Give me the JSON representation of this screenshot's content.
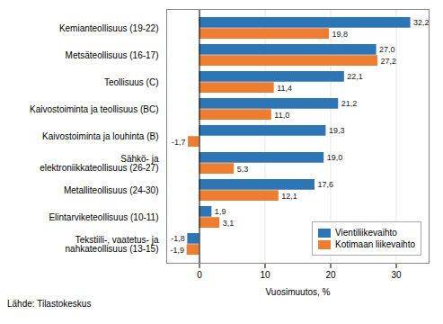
{
  "chart_data": {
    "type": "bar",
    "orientation": "horizontal",
    "categories": [
      "Kemianteollisuus (19-22)",
      "Metsäteollisuus (16-17)",
      "Teollisuus (C)",
      "Kaivostoiminta ja teollisuus (BC)",
      "Kaivostoiminta ja louhinta (B)",
      "Sähkö- ja\nelektroniikkateollisuus (26-27)",
      "Metalliteollisuus (24-30)",
      "Elintarviketeollisuus (10-11)",
      "Tekstiili-, vaatetus- ja\nnahkateollisuus (13-15)"
    ],
    "series": [
      {
        "name": "Vientiliikevaihto",
        "color": "#2e75b6",
        "values": [
          32.2,
          27.0,
          22.1,
          21.2,
          19.3,
          19.0,
          17.6,
          1.9,
          -1.8
        ],
        "value_labels": [
          "32,2",
          "27,0",
          "22,1",
          "21,2",
          "19,3",
          "19,0",
          "17,6",
          "1,9",
          "-1,8"
        ]
      },
      {
        "name": "Kotimaan liikevaihto",
        "color": "#ed7d31",
        "values": [
          19.8,
          27.2,
          11.4,
          11.0,
          -1.7,
          5.3,
          12.1,
          3.1,
          -1.9
        ],
        "value_labels": [
          "19,8",
          "27,2",
          "11,4",
          "11,0",
          "-1,7",
          "5,3",
          "12,1",
          "3,1",
          "-1,9"
        ]
      }
    ],
    "xlabel": "Vuosimuutos, %",
    "source": "Lähde: Tilastokeskus",
    "xlim": [
      -5,
      35
    ],
    "xticks": [
      0,
      10,
      20,
      30
    ],
    "grid": true,
    "legend": "lower right",
    "data_labels": true
  }
}
